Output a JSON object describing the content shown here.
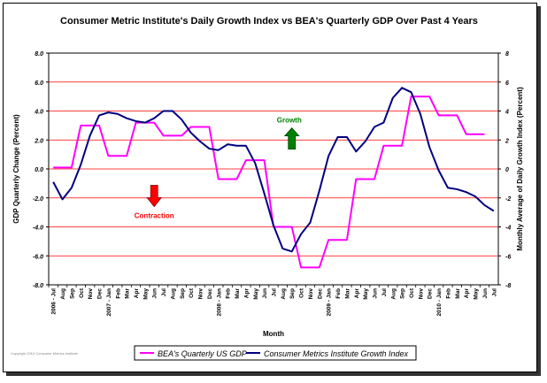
{
  "chart_data": {
    "type": "line",
    "title": "Consumer Metric Institute's Daily Growth Index vs BEA's Quarterly GDP Over Past 4 Years",
    "xlabel": "Month",
    "ylabel": "GDP Quarterly Change (Percent)",
    "ylabel_right": "Monthly Average of Daily Growth Index (Percent)",
    "ylim": [
      -8,
      8
    ],
    "yticks": [
      "8.0",
      "6.0",
      "4.0",
      "2.0",
      "0.0",
      "-2.0",
      "-4.0",
      "-6.0",
      "-8.0"
    ],
    "yticks_right": [
      "8",
      "6",
      "4",
      "2",
      "0",
      "-2",
      "-4",
      "-6",
      "-8"
    ],
    "x_labels": [
      "2006 - Jul",
      "Aug",
      "Sep",
      "Oct",
      "Nov",
      "Dec",
      "2007 - Jan",
      "Feb",
      "Mar",
      "Apr",
      "May",
      "Jun",
      "Jul",
      "Aug",
      "Sep",
      "Oct",
      "Nov",
      "Dec",
      "2008 - Jan",
      "Feb",
      "Mar",
      "Apr",
      "May",
      "Jun",
      "Jul",
      "Aug",
      "Sep",
      "Oct",
      "Nov",
      "Dec",
      "2009 - Jan",
      "Feb",
      "Mar",
      "Apr",
      "May",
      "Jun",
      "Jul",
      "Aug",
      "Sep",
      "Oct",
      "Nov",
      "Dec",
      "2010 - Jan",
      "Feb",
      "Mar",
      "Apr",
      "May",
      "Jun",
      "Jul"
    ],
    "grid": true,
    "legend_position": "bottom",
    "series": [
      {
        "name": "BEA's Quarterly US GDP",
        "color": "#ff00ff",
        "values": [
          0.1,
          0.1,
          0.1,
          3.0,
          3.0,
          3.0,
          0.9,
          0.9,
          0.9,
          3.2,
          3.2,
          3.2,
          2.3,
          2.3,
          2.3,
          2.9,
          2.9,
          2.9,
          -0.7,
          -0.7,
          -0.7,
          0.6,
          0.6,
          0.6,
          -4.0,
          -4.0,
          -4.0,
          -6.8,
          -6.8,
          -6.8,
          -4.9,
          -4.9,
          -4.9,
          -0.7,
          -0.7,
          -0.7,
          1.6,
          1.6,
          1.6,
          5.0,
          5.0,
          5.0,
          3.7,
          3.7,
          3.7,
          2.4,
          2.4,
          2.4,
          null
        ]
      },
      {
        "name": "Consumer Metrics Institute Growth Index",
        "color": "#000080",
        "values": [
          -0.9,
          -2.1,
          -1.3,
          0.3,
          2.3,
          3.7,
          3.9,
          3.8,
          3.5,
          3.3,
          3.2,
          3.5,
          4.0,
          4.0,
          3.4,
          2.5,
          1.9,
          1.4,
          1.3,
          1.7,
          1.6,
          1.6,
          0.4,
          -1.7,
          -3.9,
          -5.5,
          -5.7,
          -4.5,
          -3.7,
          -1.5,
          0.9,
          2.2,
          2.2,
          1.2,
          1.9,
          2.9,
          3.2,
          4.9,
          5.6,
          5.3,
          3.8,
          1.5,
          -0.1,
          -1.3,
          -1.4,
          -1.6,
          -1.9,
          -2.5,
          -2.9
        ]
      }
    ],
    "annotations": [
      {
        "text": "Growth",
        "color": "#008000",
        "x_index": 26,
        "y": 3.2
      },
      {
        "text": "Contraction",
        "color": "#ff0000",
        "x_index": 11,
        "y": -2.6
      }
    ],
    "credit": "Copyright 2010 Consumer Metrics Institute"
  }
}
